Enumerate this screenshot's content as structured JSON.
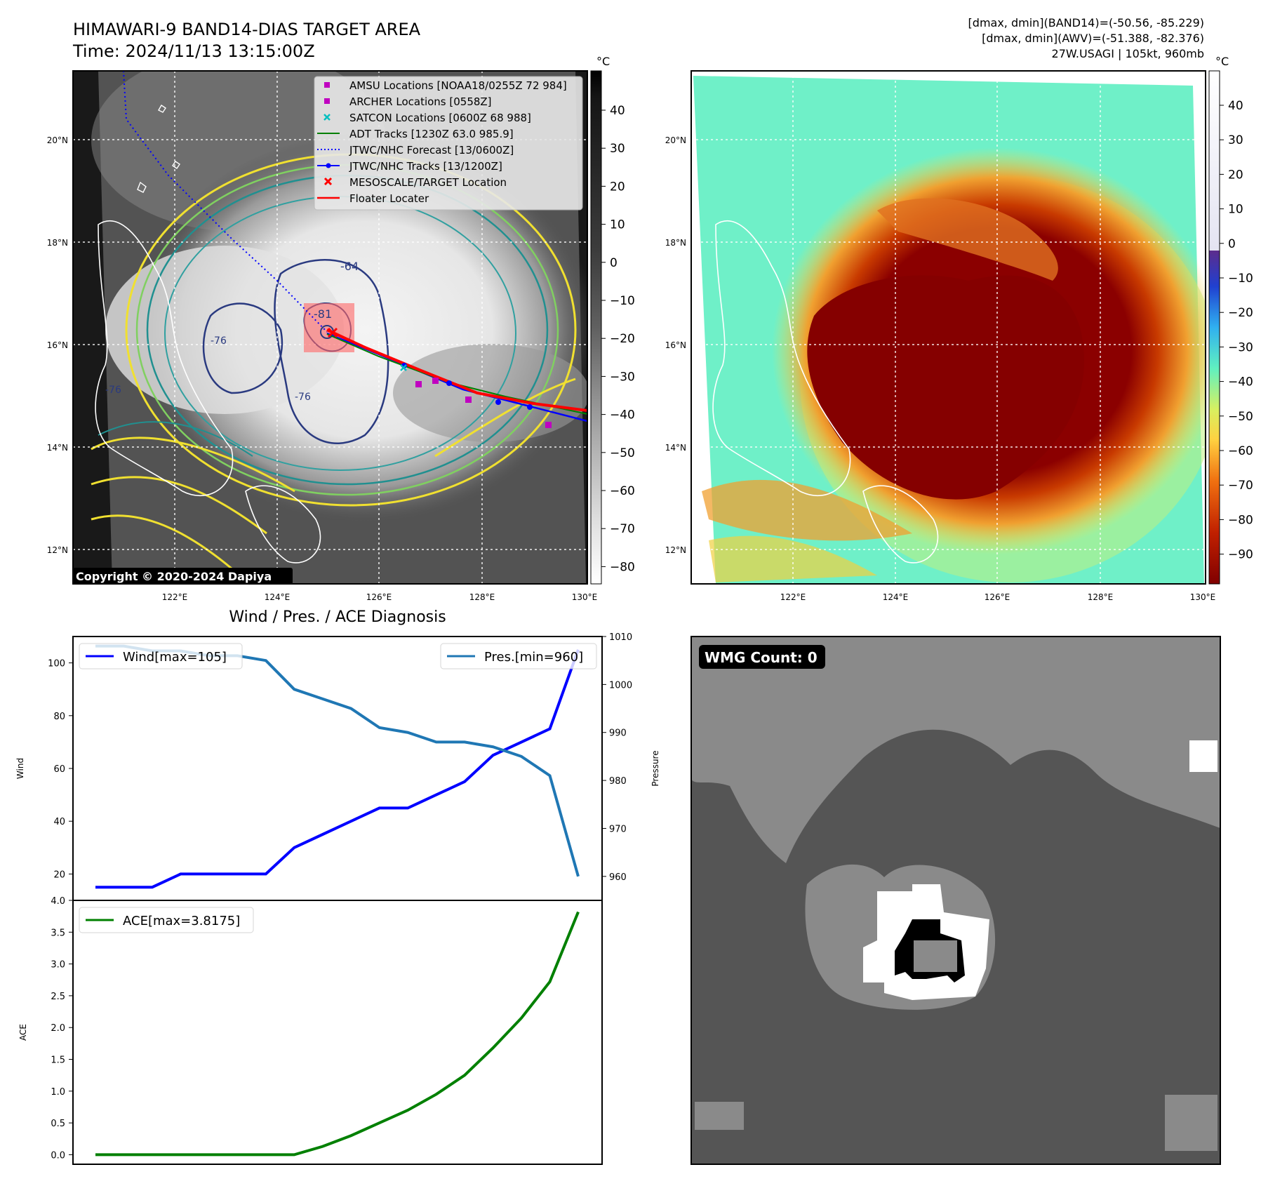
{
  "header": {
    "title": "HIMAWARI-9 BAND14-DIAS TARGET AREA",
    "time": "Time: 2024/11/13 13:15:00Z",
    "stats": [
      "[dmax, dmin](BAND14)=(-50.56, -85.229)",
      "[dmax, dmin](AWV)=(-51.388, -82.376)",
      "27W.USAGI | 105kt, 960mb"
    ]
  },
  "map": {
    "lon_ticks": [
      "122°E",
      "124°E",
      "126°E",
      "128°E",
      "130°E"
    ],
    "lat_ticks": [
      "20°N",
      "18°N",
      "16°N",
      "14°N",
      "12°N"
    ],
    "copyright": "Copyright © 2020-2024 Dapiya",
    "contour_labels": [
      "-64",
      "-81",
      "-76",
      "-76",
      "-76"
    ],
    "legend": [
      {
        "label": "AMSU Locations [NOAA18/0255Z 72 984]",
        "marker": "square",
        "color": "#c000c0"
      },
      {
        "label": "ARCHER Locations [0558Z]",
        "marker": "square",
        "color": "#c000c0"
      },
      {
        "label": "SATCON Locations [0600Z 68 988]",
        "marker": "x",
        "color": "#00bfbf"
      },
      {
        "label": "ADT Tracks [1230Z 63.0 985.9]",
        "marker": "line",
        "color": "#008000"
      },
      {
        "label": "JTWC/NHC Forecast [13/0600Z]",
        "marker": "dotted",
        "color": "#0000ff"
      },
      {
        "label": "JTWC/NHC Tracks [13/1200Z]",
        "marker": "line-dot",
        "color": "#0000ff"
      },
      {
        "label": "MESOSCALE/TARGET Location",
        "marker": "x",
        "color": "#ff0000"
      },
      {
        "label": "Floater Locater",
        "marker": "line",
        "color": "#ff0000"
      }
    ]
  },
  "colorbar_gray": {
    "unit": "°C",
    "ticks": [
      "40",
      "30",
      "20",
      "10",
      "0",
      "−10",
      "−20",
      "−30",
      "−40",
      "−50",
      "−60",
      "−70",
      "−80"
    ]
  },
  "colorbar_color": {
    "unit": "°C",
    "ticks": [
      "40",
      "30",
      "20",
      "10",
      "0",
      "−10",
      "−20",
      "−30",
      "−40",
      "−50",
      "−60",
      "−70",
      "−80",
      "−90"
    ]
  },
  "wmg": {
    "label": "WMG Count: 0"
  },
  "chart_data": [
    {
      "type": "line",
      "title": "Wind / Pres. / ACE Diagnosis",
      "x": [
        1,
        2,
        3,
        4,
        5,
        6,
        7,
        8,
        9,
        10,
        11,
        12,
        13,
        14,
        15,
        16,
        17,
        18
      ],
      "series": [
        {
          "name": "Wind[max=105]",
          "axis": "left",
          "color": "#0000ff",
          "values": [
            15,
            15,
            15,
            20,
            20,
            20,
            20,
            30,
            35,
            40,
            45,
            45,
            50,
            55,
            65,
            70,
            75,
            105
          ]
        },
        {
          "name": "Pres.[min=960]",
          "axis": "right",
          "color": "#1f77b4",
          "values": [
            1008,
            1008,
            1007,
            1007,
            1006,
            1006,
            1005,
            999,
            997,
            995,
            991,
            990,
            988,
            988,
            987,
            985,
            981,
            960
          ]
        }
      ],
      "ylabel": "Wind",
      "ylabel_right": "Pressure",
      "ylim": [
        10,
        110
      ],
      "ylim_right": [
        955,
        1010
      ],
      "yticks": [
        "100",
        "80",
        "60",
        "40",
        "20"
      ],
      "yticks_right": [
        "1010",
        "1000",
        "990",
        "980",
        "970",
        "960"
      ]
    },
    {
      "type": "line",
      "x": [
        1,
        2,
        3,
        4,
        5,
        6,
        7,
        8,
        9,
        10,
        11,
        12,
        13,
        14,
        15,
        16,
        17,
        18
      ],
      "series": [
        {
          "name": "ACE[max=3.8175]",
          "color": "#008000",
          "values": [
            0,
            0,
            0,
            0,
            0,
            0,
            0,
            0,
            0.13,
            0.3,
            0.5,
            0.7,
            0.95,
            1.25,
            1.68,
            2.15,
            2.72,
            3.8175
          ]
        }
      ],
      "ylabel": "ACE",
      "ylim": [
        -0.15,
        4.0
      ],
      "yticks": [
        "4.0",
        "3.5",
        "3.0",
        "2.5",
        "2.0",
        "1.5",
        "1.0",
        "0.5",
        "0.0"
      ]
    }
  ]
}
